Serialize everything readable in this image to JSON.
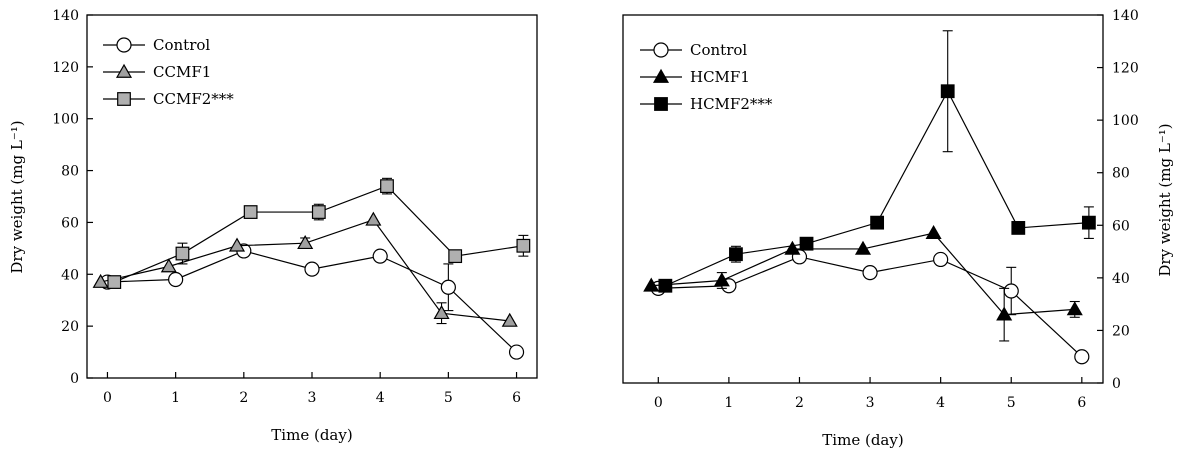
{
  "chart_data": [
    {
      "type": "line",
      "xlabel": "Time (day)",
      "ylabel": "Dry weight (mg L⁻¹)",
      "ylabel_side": "left",
      "xlim": [
        -0.3,
        6.3
      ],
      "ylim": [
        0,
        140
      ],
      "xticks": [
        0,
        1,
        2,
        3,
        4,
        5,
        6
      ],
      "yticks": [
        0,
        20,
        40,
        60,
        80,
        100,
        120,
        140
      ],
      "grid": false,
      "legend": "top-left",
      "series": [
        {
          "name": "Control",
          "marker": "circle",
          "fill": "#ffffff",
          "x": [
            0,
            1,
            2,
            3,
            4,
            5,
            6
          ],
          "y": [
            37,
            38,
            49,
            42,
            47,
            35,
            10
          ],
          "err": [
            0,
            0,
            0,
            0,
            0,
            9,
            0
          ]
        },
        {
          "name": "CCMF1",
          "marker": "triangle",
          "fill": "#a0a0a0",
          "x": [
            -0.1,
            0.9,
            1.9,
            2.9,
            3.9,
            4.9,
            5.9
          ],
          "y": [
            37,
            43,
            51,
            52,
            61,
            25,
            22
          ],
          "err": [
            0,
            0,
            0,
            2,
            0,
            4,
            0
          ]
        },
        {
          "name": "CCMF2***",
          "marker": "square",
          "fill": "#b0b0b0",
          "x": [
            0.1,
            1.1,
            2.1,
            3.1,
            4.1,
            5.1,
            6.1
          ],
          "y": [
            37,
            48,
            64,
            64,
            74,
            47,
            51
          ],
          "err": [
            0,
            4,
            0,
            3,
            3,
            0,
            4
          ]
        }
      ]
    },
    {
      "type": "line",
      "xlabel": "Time (day)",
      "ylabel": "Dry weight (mg L⁻¹)",
      "ylabel_side": "right",
      "xlim": [
        -0.5,
        6.3
      ],
      "ylim": [
        0,
        140
      ],
      "xticks": [
        0,
        1,
        2,
        3,
        4,
        5,
        6
      ],
      "yticks": [
        0,
        20,
        40,
        60,
        80,
        100,
        120,
        140
      ],
      "grid": false,
      "legend": "top-left",
      "series": [
        {
          "name": "Control",
          "marker": "circle",
          "fill": "#ffffff",
          "x": [
            0,
            1,
            2,
            3,
            4,
            5,
            6
          ],
          "y": [
            36,
            37,
            48,
            42,
            47,
            35,
            10
          ],
          "err": [
            0,
            0,
            0,
            0,
            0,
            9,
            0
          ]
        },
        {
          "name": "HCMF1",
          "marker": "triangle",
          "fill": "#000000",
          "x": [
            -0.1,
            0.9,
            1.9,
            2.9,
            3.9,
            4.9,
            5.9
          ],
          "y": [
            37,
            39,
            51,
            51,
            57,
            26,
            28
          ],
          "err": [
            0,
            3,
            0,
            0,
            0,
            10,
            3
          ]
        },
        {
          "name": "HCMF2***",
          "marker": "square",
          "fill": "#000000",
          "x": [
            0.1,
            1.1,
            2.1,
            3.1,
            4.1,
            5.1,
            6.1
          ],
          "y": [
            37,
            49,
            53,
            61,
            111,
            59,
            61
          ],
          "err": [
            0,
            3,
            0,
            0,
            23,
            0,
            6
          ]
        }
      ]
    }
  ]
}
